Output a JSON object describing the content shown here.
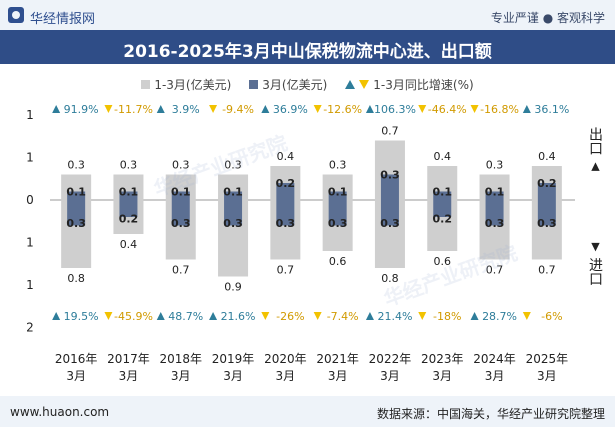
{
  "header": {
    "brand": "华经情报网",
    "slogan": "专业严谨 ● 客观科学",
    "title": "2016-2025年3月中山保税物流中心进、出口额"
  },
  "legend": {
    "cumulative": "1-3月(亿美元)",
    "march": "3月(亿美元)",
    "growth": "1-3月同比增速(%)"
  },
  "side": {
    "export_label": "出口",
    "import_label": "进口"
  },
  "footer": {
    "url": "www.huaon.com",
    "source": "数据来源：中国海关，华经产业研究院整理"
  },
  "watermark": "华经产业研究院",
  "colors": {
    "cumulative": "#cfcfcf",
    "march": "#5b6f93",
    "growth_up": "#2e7d9a",
    "growth_down": "#f2c200"
  },
  "chart_data": {
    "type": "bar",
    "categories": [
      "2016年\n3月",
      "2017年\n3月",
      "2018年\n3月",
      "2019年\n3月",
      "2020年\n3月",
      "2021年\n3月",
      "2022年\n3月",
      "2023年\n3月",
      "2024年\n3月",
      "2025年\n3月"
    ],
    "y_tick_labels": [
      "1",
      "1",
      "0",
      "1",
      "1",
      "2"
    ],
    "y_ticks": [
      1.0,
      0.5,
      0.0,
      -0.5,
      -1.0,
      -1.5
    ],
    "ylim": [
      -1.5,
      1.0
    ],
    "series": [
      {
        "name": "出口 1-3月(亿美元)",
        "values": [
          0.3,
          0.3,
          0.3,
          0.3,
          0.4,
          0.3,
          0.7,
          0.4,
          0.3,
          0.4
        ]
      },
      {
        "name": "出口 3月(亿美元)",
        "values": [
          0.1,
          0.1,
          0.1,
          0.1,
          0.2,
          0.1,
          0.3,
          0.1,
          0.1,
          0.2
        ]
      },
      {
        "name": "进口 1-3月(亿美元)",
        "values": [
          0.8,
          0.4,
          0.7,
          0.9,
          0.7,
          0.6,
          0.8,
          0.6,
          0.7,
          0.7
        ]
      },
      {
        "name": "进口 3月(亿美元)",
        "values": [
          0.3,
          0.2,
          0.3,
          0.3,
          0.3,
          0.3,
          0.3,
          0.2,
          0.3,
          0.3
        ]
      }
    ],
    "export_growth": [
      "91.9%",
      "-11.7%",
      "3.9%",
      "-9.4%",
      "36.9%",
      "-12.6%",
      "106.3%",
      "-46.4%",
      "-16.8%",
      "36.1%"
    ],
    "import_growth": [
      "19.5%",
      "-45.9%",
      "48.7%",
      "21.6%",
      "-26%",
      "-7.4%",
      "21.4%",
      "-18%",
      "28.7%",
      "-6%"
    ]
  }
}
